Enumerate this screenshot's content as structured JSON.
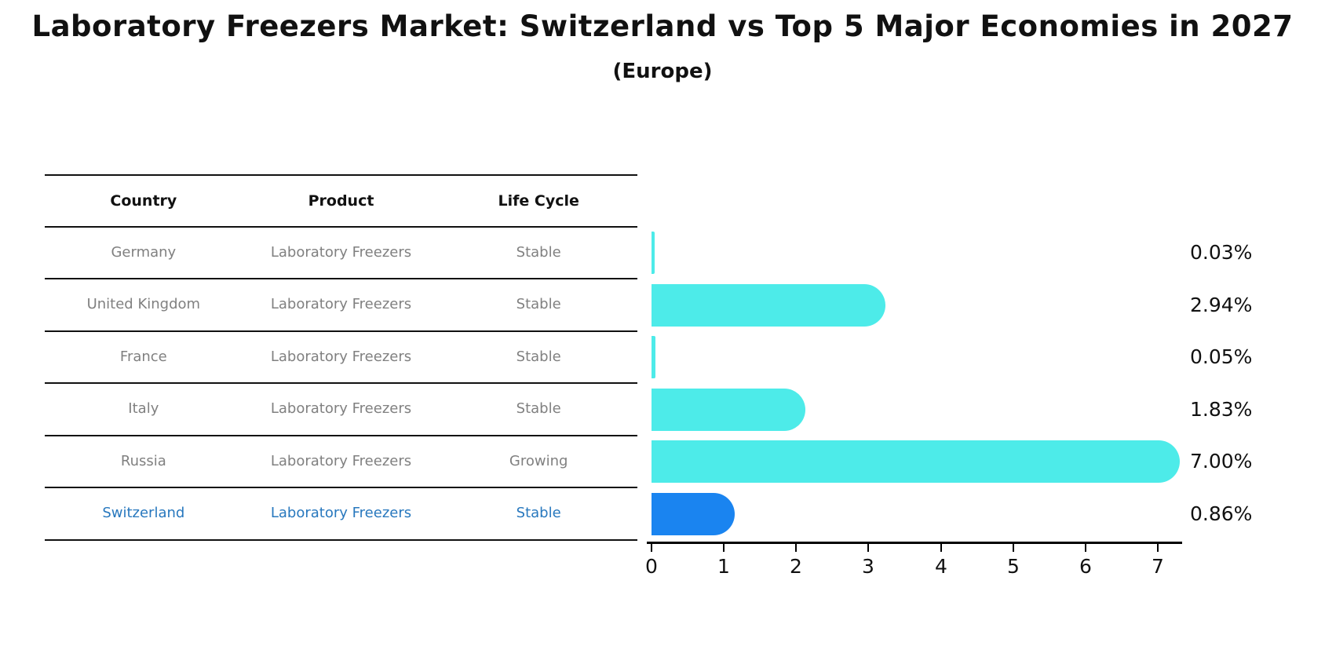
{
  "title": "Laboratory Freezers Market: Switzerland vs Top 5 Major Economies in 2027",
  "subtitle": "(Europe)",
  "table": {
    "headers": [
      "Country",
      "Product",
      "Life Cycle"
    ],
    "rows": [
      {
        "country": "Germany",
        "product": "Laboratory Freezers",
        "life_cycle": "Stable"
      },
      {
        "country": "United Kingdom",
        "product": "Laboratory Freezers",
        "life_cycle": "Stable"
      },
      {
        "country": "France",
        "product": "Laboratory Freezers",
        "life_cycle": "Stable"
      },
      {
        "country": "Italy",
        "product": "Laboratory Freezers",
        "life_cycle": "Stable"
      },
      {
        "country": "Russia",
        "product": "Laboratory Freezers",
        "life_cycle": "Growing"
      },
      {
        "country": "Switzerland",
        "product": "Laboratory Freezers",
        "life_cycle": "Stable"
      }
    ],
    "highlighted_row": "Switzerland"
  },
  "chart_data": {
    "type": "bar",
    "orientation": "horizontal",
    "title": "Laboratory Freezers Market: Switzerland vs Top 5 Major Economies in 2027",
    "subtitle": "(Europe)",
    "categories": [
      "Germany",
      "United Kingdom",
      "France",
      "Italy",
      "Russia",
      "Switzerland"
    ],
    "values": [
      0.03,
      2.94,
      0.05,
      1.83,
      7.0,
      0.86
    ],
    "value_labels": [
      "0.03%",
      "2.94%",
      "0.05%",
      "1.83%",
      "7.00%",
      "0.86%"
    ],
    "x_ticks": [
      "0",
      "1",
      "2",
      "3",
      "4",
      "5",
      "6",
      "7"
    ],
    "xlim": [
      0,
      7.33
    ],
    "grid": false,
    "legend": false,
    "highlight_index": 5,
    "bar_colors": [
      "#4DEBE9",
      "#4DEBE9",
      "#4DEBE9",
      "#4DEBE9",
      "#4DEBE9",
      "#1A84F0"
    ]
  },
  "colors": {
    "bar_default": "#4DEBE9",
    "bar_highlight": "#1A84F0",
    "highlight_text": "#2878BE",
    "table_text": "#808080",
    "heading_text": "#111111",
    "axis": "#000000",
    "background": "#ffffff"
  }
}
